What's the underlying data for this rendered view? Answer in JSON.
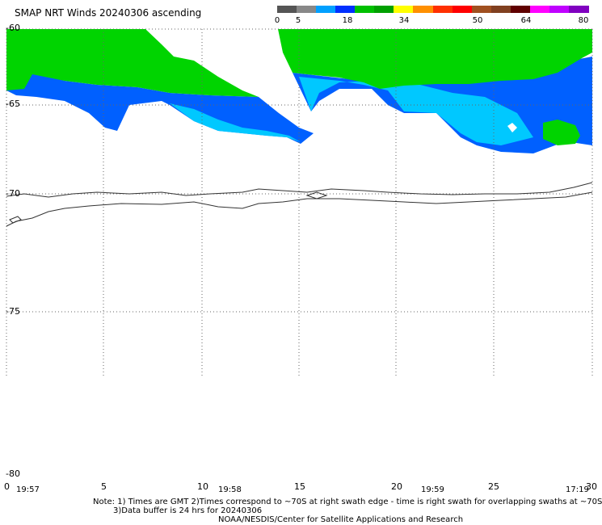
{
  "title": "SMAP NRT Winds 20240306 ascending",
  "colorbar": {
    "ticks": [
      "0",
      "5",
      "18",
      "34",
      "50",
      "64",
      "80"
    ],
    "colors": [
      "#555555",
      "#888888",
      "#00a0ff",
      "#0030ff",
      "#00c000",
      "#00a000",
      "#ffff00",
      "#ff9000",
      "#ff3000",
      "#ff0000",
      "#a05020",
      "#804020",
      "#600000",
      "#ff00ff",
      "#c000ff",
      "#8000c0"
    ]
  },
  "map": {
    "lat_labels": [
      "-60",
      "-65",
      "-70",
      "-75",
      "-80"
    ],
    "lon_labels": [
      "0",
      "5",
      "10",
      "15",
      "20",
      "25",
      "30"
    ],
    "times": [
      "19:57",
      "19:58",
      "19:59",
      "17:19"
    ],
    "colors": {
      "strong_wind": "#00d400",
      "mid_wind": "#0060ff",
      "light_wind": "#00c8ff",
      "coast": "#333333"
    }
  },
  "notes": {
    "line1": "Note: 1) Times are GMT 2)Times correspond to ~70S at right swath edge - time is right swath for overlapping swaths at ~70S",
    "line2": "3)Data buffer is 24 hrs for 20240306",
    "line3": "NOAA/NESDIS/Center for Satellite Applications and Research"
  }
}
